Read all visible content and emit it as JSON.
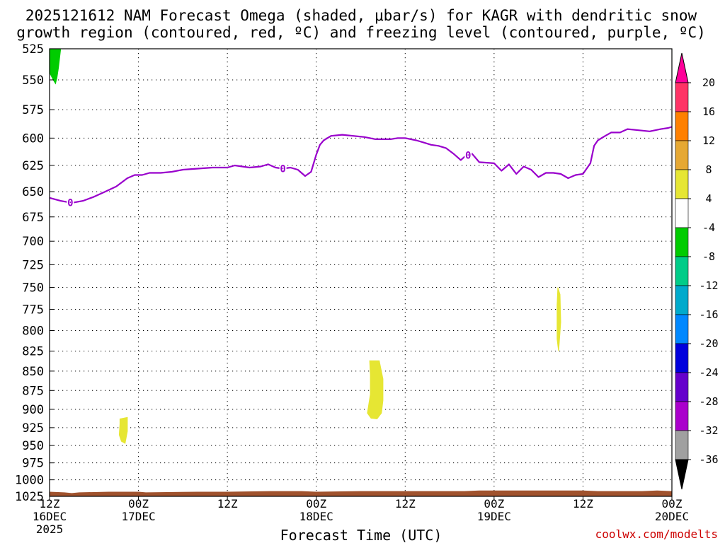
{
  "title": {
    "line1": "2025121612 NAM Forecast Omega (shaded, μbar/s) for KAGR with dendritic snow",
    "line2": "growth region (contoured, red, ºC) and freezing level (contoured, purple, ºC)"
  },
  "credit": "coolwx.com/modelts",
  "chart_data": {
    "type": "time-height cross-section",
    "title": "2025121612 NAM Forecast Omega (shaded, μbar/s) for KAGR with dendritic snow growth region (contoured, red, ºC) and freezing level (contoured, purple, ºC)",
    "xlabel": "Forecast Time (UTC)",
    "ylabel": "",
    "x_range_hours": [
      0,
      84
    ],
    "x_ticks": [
      {
        "h": 0,
        "top": "12Z",
        "mid": "16DEC",
        "bot": "2025"
      },
      {
        "h": 12,
        "top": "00Z",
        "mid": "17DEC",
        "bot": ""
      },
      {
        "h": 24,
        "top": "12Z",
        "mid": "",
        "bot": ""
      },
      {
        "h": 36,
        "top": "00Z",
        "mid": "18DEC",
        "bot": ""
      },
      {
        "h": 48,
        "top": "12Z",
        "mid": "",
        "bot": ""
      },
      {
        "h": 60,
        "top": "00Z",
        "mid": "19DEC",
        "bot": ""
      },
      {
        "h": 72,
        "top": "12Z",
        "mid": "",
        "bot": ""
      },
      {
        "h": 84,
        "top": "00Z",
        "mid": "20DEC",
        "bot": ""
      }
    ],
    "y_scale": "log-pressure",
    "y_range_mb": [
      1025,
      525
    ],
    "y_ticks": [
      525,
      550,
      575,
      600,
      625,
      650,
      675,
      700,
      725,
      750,
      775,
      800,
      825,
      850,
      875,
      900,
      925,
      950,
      975,
      1000,
      1025
    ],
    "grid": true,
    "freezing_level": {
      "color": "#9900cc",
      "label": "0",
      "label_hours": [
        2.8,
        31.5,
        56.5
      ],
      "points": [
        [
          0,
          656
        ],
        [
          1.5,
          659
        ],
        [
          3,
          661
        ],
        [
          4.5,
          659
        ],
        [
          6,
          655
        ],
        [
          7.5,
          650
        ],
        [
          9,
          645
        ],
        [
          10.5,
          637
        ],
        [
          11.5,
          634
        ],
        [
          12.5,
          634
        ],
        [
          13.5,
          632
        ],
        [
          15,
          632
        ],
        [
          16.5,
          631
        ],
        [
          18,
          629
        ],
        [
          20,
          628
        ],
        [
          22,
          627
        ],
        [
          24,
          627
        ],
        [
          25,
          625
        ],
        [
          26,
          626
        ],
        [
          27,
          627
        ],
        [
          28.5,
          626
        ],
        [
          29.5,
          624
        ],
        [
          30.5,
          627
        ],
        [
          31.5,
          628
        ],
        [
          32.5,
          627
        ],
        [
          33.5,
          629
        ],
        [
          34.5,
          635
        ],
        [
          35.3,
          631
        ],
        [
          36,
          615
        ],
        [
          36.5,
          606
        ],
        [
          37,
          602
        ],
        [
          38,
          598
        ],
        [
          39.5,
          597
        ],
        [
          41,
          598
        ],
        [
          42.5,
          599
        ],
        [
          44,
          601
        ],
        [
          46,
          601
        ],
        [
          47,
          600
        ],
        [
          48,
          600
        ],
        [
          49.5,
          602
        ],
        [
          50.5,
          604
        ],
        [
          51.5,
          606
        ],
        [
          52.5,
          607
        ],
        [
          53.5,
          609
        ],
        [
          54.5,
          614
        ],
        [
          55.5,
          620
        ],
        [
          56,
          617
        ],
        [
          57,
          614
        ],
        [
          58,
          622
        ],
        [
          60,
          623
        ],
        [
          61,
          630
        ],
        [
          61.5,
          627
        ],
        [
          62,
          624
        ],
        [
          63,
          633
        ],
        [
          64,
          626
        ],
        [
          65,
          629
        ],
        [
          66,
          636
        ],
        [
          67,
          632
        ],
        [
          68,
          632
        ],
        [
          69,
          633
        ],
        [
          70,
          637
        ],
        [
          71,
          634
        ],
        [
          72,
          633
        ],
        [
          73,
          623
        ],
        [
          73.5,
          607
        ],
        [
          74,
          602
        ],
        [
          75,
          598
        ],
        [
          75.8,
          595
        ],
        [
          77,
          595
        ],
        [
          78,
          592
        ],
        [
          79.5,
          593
        ],
        [
          81,
          594
        ],
        [
          82.5,
          592
        ],
        [
          83.5,
          591
        ],
        [
          84,
          590
        ]
      ]
    },
    "omega_shaded": [
      {
        "range": "-8 to -4",
        "color": "#00cc00",
        "polygon": [
          [
            0,
            525
          ],
          [
            1.5,
            525
          ],
          [
            1.2,
            540
          ],
          [
            1.0,
            548
          ],
          [
            0.8,
            553
          ],
          [
            0.5,
            550
          ],
          [
            0,
            544
          ]
        ]
      },
      {
        "range": "4 to 8",
        "color": "#e6e633",
        "polygon": [
          [
            9.5,
            913
          ],
          [
            10.5,
            911
          ],
          [
            10.5,
            930
          ],
          [
            10.2,
            947
          ],
          [
            9.7,
            944
          ],
          [
            9.4,
            935
          ],
          [
            9.5,
            920
          ]
        ]
      },
      {
        "range": "4 to 8",
        "color": "#e6e633",
        "polygon": [
          [
            43.2,
            837
          ],
          [
            44.5,
            837
          ],
          [
            45.0,
            860
          ],
          [
            45.0,
            888
          ],
          [
            44.8,
            905
          ],
          [
            44.2,
            913
          ],
          [
            43.4,
            912
          ],
          [
            42.9,
            905
          ],
          [
            43.3,
            880
          ],
          [
            43.3,
            855
          ]
        ]
      },
      {
        "range": "4 to 8",
        "color": "#e6e633",
        "polygon": [
          [
            68.6,
            750
          ],
          [
            68.9,
            758
          ],
          [
            69.0,
            790
          ],
          [
            68.8,
            815
          ],
          [
            68.7,
            825
          ],
          [
            68.5,
            810
          ],
          [
            68.5,
            770
          ]
        ]
      }
    ],
    "terrain": {
      "color": "#a0522d",
      "points": [
        [
          0,
          1018
        ],
        [
          2,
          1019
        ],
        [
          3,
          1020
        ],
        [
          4,
          1019
        ],
        [
          8,
          1018
        ],
        [
          12,
          1018
        ],
        [
          13,
          1019
        ],
        [
          20,
          1018
        ],
        [
          24,
          1018
        ],
        [
          30,
          1017
        ],
        [
          34,
          1017
        ],
        [
          36,
          1018
        ],
        [
          42,
          1017
        ],
        [
          56,
          1017
        ],
        [
          58,
          1016
        ],
        [
          72,
          1016
        ],
        [
          74,
          1017
        ],
        [
          80,
          1017
        ],
        [
          82,
          1016
        ],
        [
          84,
          1017
        ]
      ]
    },
    "colorbar": {
      "labels": [
        "20",
        "16",
        "12",
        "8",
        "4",
        "-4",
        "-8",
        "-12",
        "-16",
        "-20",
        "-24",
        "-28",
        "-32",
        "-36"
      ],
      "bands": [
        "#ff3366",
        "#ff8000",
        "#e6a833",
        "#e6e633",
        "#ffffff",
        "#00cc00",
        "#00cc88",
        "#00aacc",
        "#0088ff",
        "#0000dd",
        "#6600cc",
        "#aa00cc",
        "#a0a0a0"
      ],
      "top_arrow_color": "#ff0099",
      "bottom_arrow_color": "#000000"
    }
  }
}
